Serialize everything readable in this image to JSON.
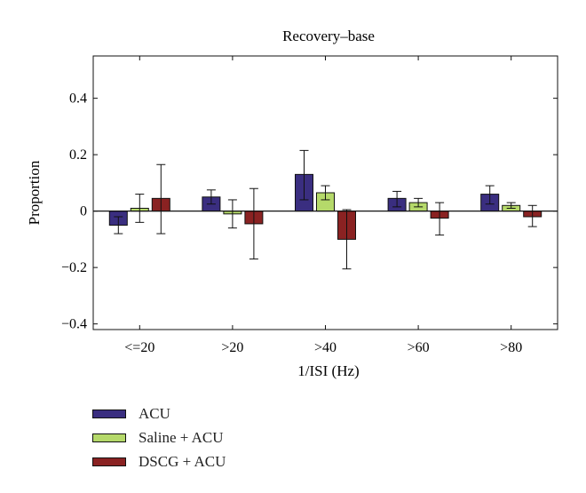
{
  "chart_data": {
    "type": "bar",
    "title": "Recovery–base",
    "xlabel": "1/ISI (Hz)",
    "ylabel": "Proportion",
    "ylim": [
      -0.42,
      0.55
    ],
    "yticks": [
      -0.4,
      -0.2,
      0,
      0.2,
      0.4
    ],
    "ytick_labels": [
      "−0.4",
      "−0.2",
      "0",
      "0.2",
      "0.4"
    ],
    "categories": [
      "<=20",
      ">20",
      ">40",
      ">60",
      ">80"
    ],
    "series": [
      {
        "name": "ACU",
        "color": "#3a2e80",
        "values": [
          -0.05,
          0.05,
          0.13,
          0.045,
          0.06
        ],
        "err_low": [
          -0.08,
          0.025,
          0.04,
          0.015,
          0.025
        ],
        "err_high": [
          -0.02,
          0.075,
          0.215,
          0.07,
          0.09
        ]
      },
      {
        "name": "Saline + ACU",
        "color": "#b5d96a",
        "values": [
          0.01,
          -0.01,
          0.065,
          0.03,
          0.02
        ],
        "err_low": [
          -0.04,
          -0.06,
          0.04,
          0.015,
          0.01
        ],
        "err_high": [
          0.06,
          0.04,
          0.09,
          0.045,
          0.03
        ]
      },
      {
        "name": "DSCG + ACU",
        "color": "#8a2222",
        "values": [
          0.045,
          -0.045,
          -0.1,
          -0.025,
          -0.02
        ],
        "err_low": [
          -0.08,
          -0.17,
          -0.205,
          -0.085,
          -0.055
        ],
        "err_high": [
          0.165,
          0.08,
          0.005,
          0.03,
          0.02
        ]
      }
    ],
    "grid": false,
    "legend": "bottom-left"
  }
}
